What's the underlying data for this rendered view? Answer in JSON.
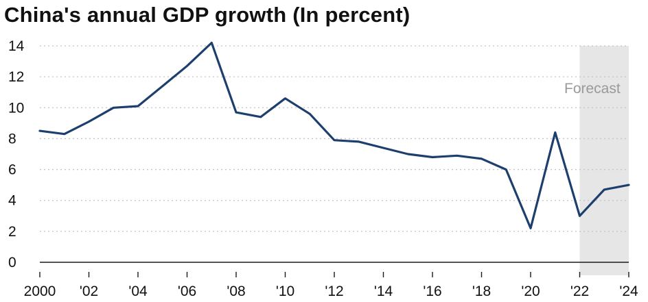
{
  "chart_data": {
    "type": "line",
    "title": "China's annual GDP growth (In percent)",
    "xlabel": "",
    "ylabel": "",
    "x": [
      2000,
      2001,
      2002,
      2003,
      2004,
      2005,
      2006,
      2007,
      2008,
      2009,
      2010,
      2011,
      2012,
      2013,
      2014,
      2015,
      2016,
      2017,
      2018,
      2019,
      2020,
      2021,
      2022,
      2023,
      2024
    ],
    "series": [
      {
        "values": [
          8.5,
          8.3,
          9.1,
          10.0,
          10.1,
          11.4,
          12.7,
          14.2,
          9.7,
          9.4,
          10.6,
          9.6,
          7.9,
          7.8,
          7.4,
          7.0,
          6.8,
          6.9,
          6.7,
          6.0,
          2.2,
          8.4,
          3.0,
          4.7,
          5.0
        ],
        "color": "#1d3f6e"
      }
    ],
    "xlim": [
      2000,
      2024
    ],
    "ylim": [
      0,
      14
    ],
    "x_ticks": [
      2000,
      2002,
      2004,
      2006,
      2008,
      2010,
      2012,
      2014,
      2016,
      2018,
      2020,
      2022,
      2024
    ],
    "x_tick_labels": [
      "2000",
      "'02",
      "'04",
      "'06",
      "'08",
      "'10",
      "'12",
      "'14",
      "'16",
      "'18",
      "'20",
      "'22",
      "'24"
    ],
    "y_ticks": [
      0,
      2,
      4,
      6,
      8,
      10,
      12,
      14
    ],
    "y_tick_labels": [
      "0",
      "2",
      "4",
      "6",
      "8",
      "10",
      "12",
      "14"
    ],
    "grid": "horizontal-dotted",
    "forecast": {
      "from": 2022,
      "to": 2024,
      "label": "Forecast",
      "shade_color": "#e6e6e6",
      "label_color": "#9a9a9a"
    }
  }
}
